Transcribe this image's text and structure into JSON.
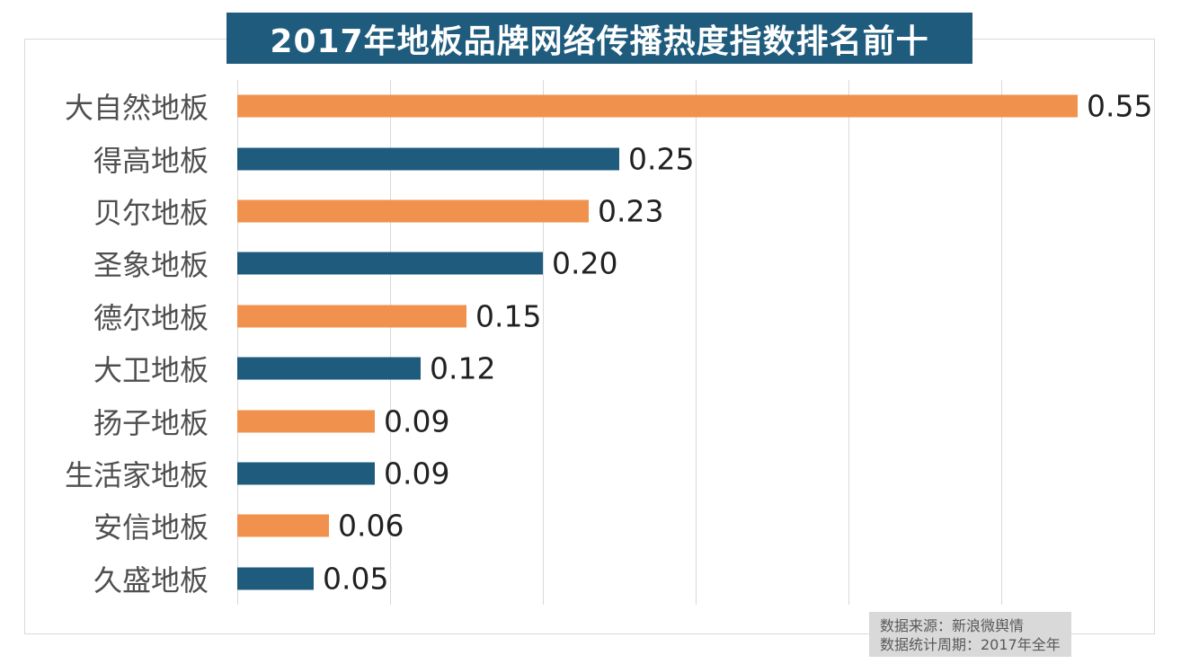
{
  "chart_data": {
    "type": "bar",
    "orientation": "horizontal",
    "title": "2017年地板品牌网络传播热度指数排名前十",
    "categories": [
      "大自然地板",
      "得高地板",
      "贝尔地板",
      "圣象地板",
      "德尔地板",
      "大卫地板",
      "扬子地板",
      "生活家地板",
      "安信地板",
      "久盛地板"
    ],
    "values": [
      0.55,
      0.25,
      0.23,
      0.2,
      0.15,
      0.12,
      0.09,
      0.09,
      0.06,
      0.05
    ],
    "value_labels": [
      "0.55",
      "0.25",
      "0.23",
      "0.20",
      "0.15",
      "0.12",
      "0.09",
      "0.09",
      "0.06",
      "0.05"
    ],
    "xlabel": "",
    "ylabel": "",
    "xlim": [
      0,
      0.6
    ],
    "grid": "vertical gridlines every 0.1, no tick labels",
    "legend": false,
    "bar_color_pattern": "alternating, odd rows orange, even rows teal"
  },
  "footer": {
    "line1": "数据来源：新浪微舆情",
    "line2": "数据统计周期：2017年全年"
  },
  "colors": {
    "banner_bg": "#1E5B7D",
    "banner_text": "#FFFFFF",
    "bar_orange": "#F0914D",
    "bar_teal": "#1E5B7D",
    "grid_line": "#D9D9D9",
    "frame_border": "#D9D9D9",
    "category_text": "#4F4F4F",
    "value_text": "#212121",
    "note_bg": "#D9D9D9",
    "note_text": "#595959",
    "background": "#FFFFFF"
  }
}
